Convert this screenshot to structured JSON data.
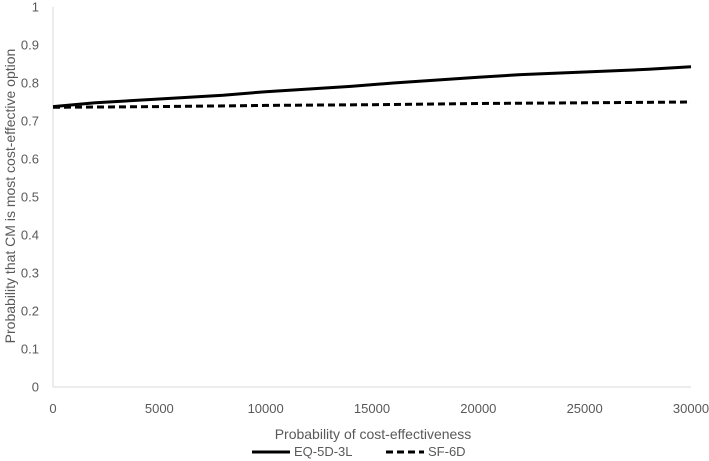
{
  "chart_data": {
    "type": "line",
    "title": "",
    "xlabel": "Probability of cost-effectiveness",
    "ylabel": "Probability that CM is most cost-effective option",
    "xlim": [
      0,
      30000
    ],
    "ylim": [
      0,
      1
    ],
    "x_ticks": [
      "0",
      "5000",
      "10000",
      "15000",
      "20000",
      "25000",
      "30000"
    ],
    "y_ticks": [
      "0",
      "0.1",
      "0.2",
      "0.3",
      "0.4",
      "0.5",
      "0.6",
      "0.7",
      "0.8",
      "0.9",
      "1"
    ],
    "grid": false,
    "legend_position": "bottom",
    "series": [
      {
        "name": "EQ-5D-3L",
        "style": "solid",
        "color": "#000000",
        "x": [
          0,
          2000,
          5000,
          8000,
          10000,
          14000,
          16000,
          20000,
          22000,
          25000,
          28000,
          30000
        ],
        "y": [
          0.738,
          0.748,
          0.758,
          0.768,
          0.777,
          0.791,
          0.8,
          0.815,
          0.822,
          0.829,
          0.836,
          0.843
        ]
      },
      {
        "name": "SF-6D",
        "style": "dashed",
        "color": "#000000",
        "x": [
          0,
          5000,
          10000,
          15000,
          20000,
          25000,
          30000
        ],
        "y": [
          0.736,
          0.738,
          0.741,
          0.743,
          0.746,
          0.748,
          0.75
        ]
      }
    ]
  }
}
